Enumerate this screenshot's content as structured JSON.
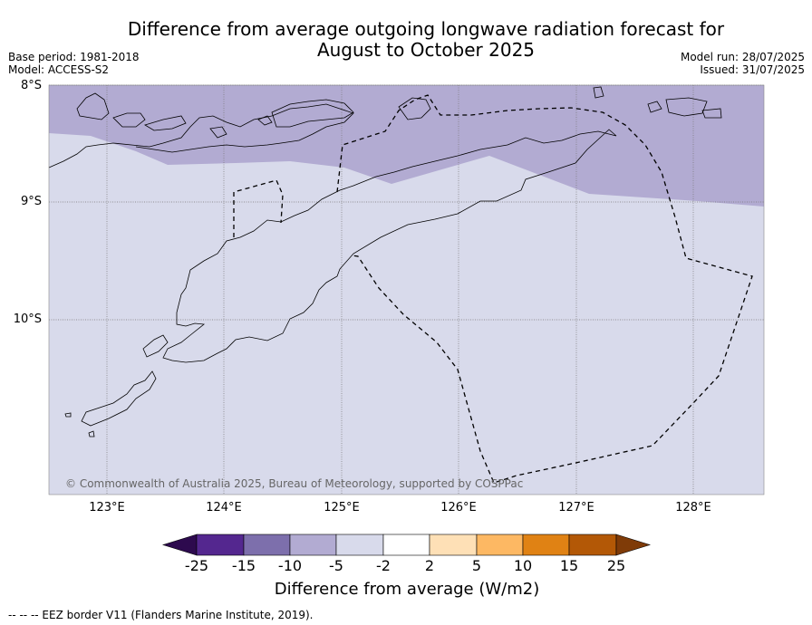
{
  "title_line1": "Difference from average outgoing longwave radiation forecast for",
  "title_line2": "August to October 2025",
  "meta_left": [
    "Base period: 1981-2018",
    "Model: ACCESS-S2"
  ],
  "meta_right": [
    "Model run: 28/07/2025",
    "Issued: 31/07/2025"
  ],
  "lat_labels": [
    "8°S",
    "9°S",
    "10°S"
  ],
  "lon_labels": [
    "123°E",
    "124°E",
    "125°E",
    "126°E",
    "127°E",
    "128°E"
  ],
  "copyright": "© Commonwealth of Australia 2025, Bureau of Meteorology, supported by COSPPac",
  "colorbar": {
    "ticks": [
      "-25",
      "-15",
      "-10",
      "-5",
      "-2",
      "2",
      "5",
      "10",
      "15",
      "25"
    ],
    "colors": [
      "#2d0a4e",
      "#54278f",
      "#7d6fac",
      "#b2abd2",
      "#d8daeb",
      "#ffffff",
      "#fee0b6",
      "#fdb863",
      "#e08214",
      "#b35806",
      "#7f3b08"
    ],
    "label": "Difference from average (W/m2)"
  },
  "map": {
    "region_colors": {
      "band_-10_-5": "#b2abd2",
      "band_-5_-2": "#d8daeb"
    }
  },
  "footer": "--  --  -- EEZ border V11 (Flanders Marine Institute, 2019)."
}
